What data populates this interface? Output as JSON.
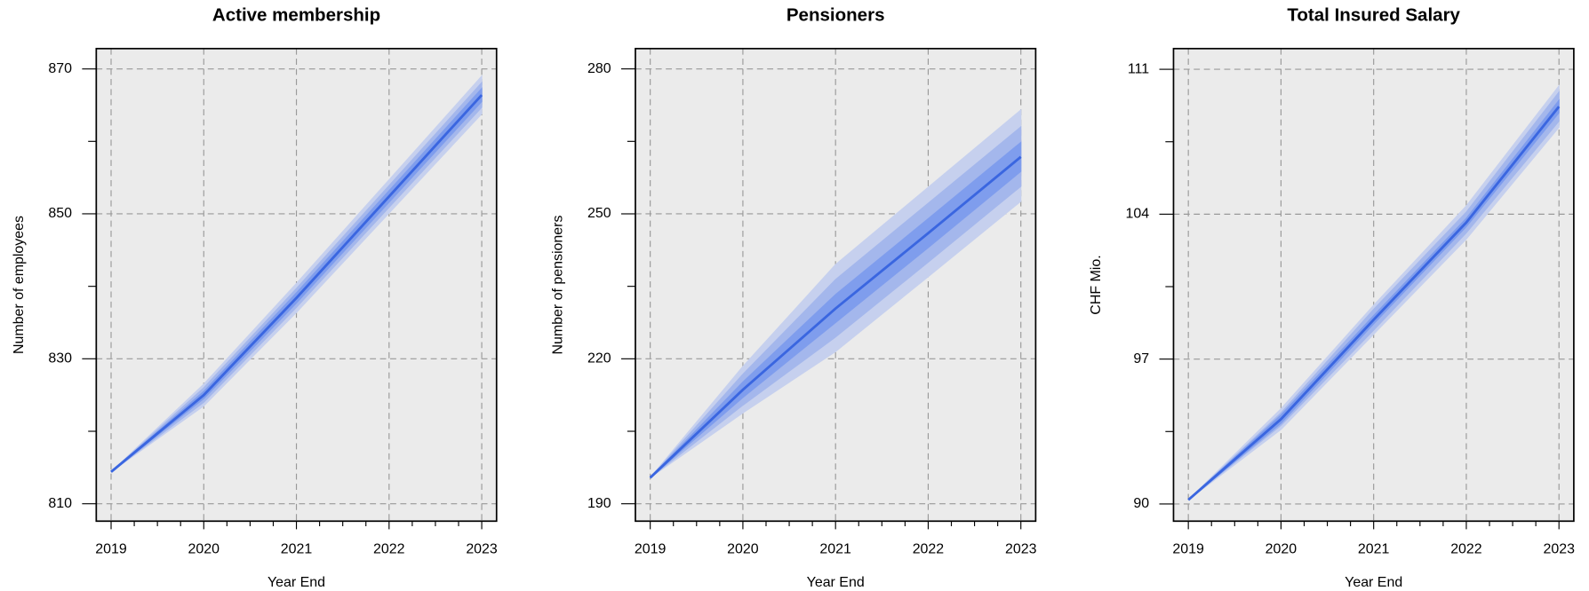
{
  "chart_data": [
    {
      "type": "fan",
      "title": "Active membership",
      "xlabel": "Year End",
      "ylabel": "Number of employees",
      "x": [
        2019,
        2020,
        2021,
        2022,
        2023
      ],
      "xlim": [
        2018.84,
        2023.16
      ],
      "xticks": [
        2019,
        2020,
        2021,
        2022,
        2023
      ],
      "xminor": [
        2019.25,
        2019.5,
        2019.75,
        2020.25,
        2020.5,
        2020.75,
        2021.25,
        2021.5,
        2021.75,
        2022.25,
        2022.5,
        2022.75
      ],
      "ylim": [
        807.6,
        872.8
      ],
      "yticks": [
        810,
        830,
        850,
        870
      ],
      "yminor": [
        820,
        840,
        860
      ],
      "grid": true,
      "background": "#ebebeb",
      "color": "#3a66e0",
      "values": [
        814.4,
        825.0,
        838.4,
        852.4,
        866.4
      ],
      "bands": [
        {
          "color": "#c6d0ee",
          "lower": [
            814.4,
            823.5,
            836.4,
            850.1,
            863.8
          ],
          "upper": [
            814.4,
            826.5,
            840.4,
            854.7,
            869.0
          ]
        },
        {
          "color": "#a4b7ec",
          "lower": [
            814.4,
            824.0,
            837.1,
            850.9,
            864.7
          ],
          "upper": [
            814.4,
            826.0,
            839.7,
            853.9,
            868.1
          ]
        },
        {
          "color": "#7f9ded",
          "lower": [
            814.4,
            824.5,
            837.7,
            851.6,
            865.5
          ],
          "upper": [
            814.4,
            825.5,
            839.1,
            853.2,
            867.3
          ]
        }
      ]
    },
    {
      "type": "fan",
      "title": "Pensioners",
      "xlabel": "Year End",
      "ylabel": "Number of pensioners",
      "x": [
        2019,
        2020,
        2021,
        2022,
        2023
      ],
      "xlim": [
        2018.84,
        2023.16
      ],
      "xticks": [
        2019,
        2020,
        2021,
        2022,
        2023
      ],
      "xminor": [
        2019.25,
        2019.5,
        2019.75,
        2020.25,
        2020.5,
        2020.75,
        2021.25,
        2021.5,
        2021.75,
        2022.25,
        2022.5,
        2022.75
      ],
      "ylim": [
        186.4,
        284.2
      ],
      "yticks": [
        190,
        220,
        250,
        280
      ],
      "yminor": [
        205,
        235,
        265
      ],
      "grid": true,
      "background": "#ebebeb",
      "color": "#3a66e0",
      "values": [
        195.4,
        213.6,
        230.4,
        246.0,
        261.8
      ],
      "bands": [
        {
          "color": "#c6d0ee",
          "lower": [
            195.4,
            208.8,
            221.5,
            237.0,
            252.6
          ],
          "upper": [
            195.4,
            218.4,
            239.5,
            255.5,
            271.5
          ]
        },
        {
          "color": "#a4b7ec",
          "lower": [
            195.4,
            210.4,
            224.5,
            240.0,
            255.7
          ],
          "upper": [
            195.4,
            216.8,
            236.4,
            252.2,
            268.0
          ]
        },
        {
          "color": "#7f9ded",
          "lower": [
            195.4,
            212.0,
            227.5,
            243.0,
            258.8
          ],
          "upper": [
            195.4,
            215.2,
            233.3,
            249.0,
            264.8
          ]
        }
      ]
    },
    {
      "type": "fan",
      "title": "Total Insured Salary",
      "xlabel": "Year End",
      "ylabel": "CHF Mio.",
      "x": [
        2019,
        2020,
        2021,
        2022,
        2023
      ],
      "xlim": [
        2018.84,
        2023.16
      ],
      "xticks": [
        2019,
        2020,
        2021,
        2022,
        2023
      ],
      "xminor": [
        2019.25,
        2019.5,
        2019.75,
        2020.25,
        2020.5,
        2020.75,
        2021.25,
        2021.5,
        2021.75,
        2022.25,
        2022.5,
        2022.75
      ],
      "ylim": [
        89.17,
        112.0
      ],
      "yticks": [
        90,
        97,
        104,
        111
      ],
      "yminor": [
        93.5,
        100.5,
        107.5
      ],
      "grid": true,
      "background": "#ebebeb",
      "color": "#3a66e0",
      "values": [
        90.2,
        94.1,
        98.9,
        103.6,
        109.2
      ],
      "bands": [
        {
          "color": "#c6d0ee",
          "lower": [
            90.2,
            93.6,
            98.2,
            102.8,
            108.2
          ],
          "upper": [
            90.2,
            94.6,
            99.6,
            104.4,
            110.2
          ]
        },
        {
          "color": "#a4b7ec",
          "lower": [
            90.2,
            93.8,
            98.4,
            103.1,
            108.5
          ],
          "upper": [
            90.2,
            94.4,
            99.4,
            104.1,
            109.9
          ]
        },
        {
          "color": "#7f9ded",
          "lower": [
            90.2,
            93.9,
            98.7,
            103.4,
            108.9
          ],
          "upper": [
            90.2,
            94.3,
            99.1,
            103.8,
            109.5
          ]
        }
      ]
    }
  ]
}
